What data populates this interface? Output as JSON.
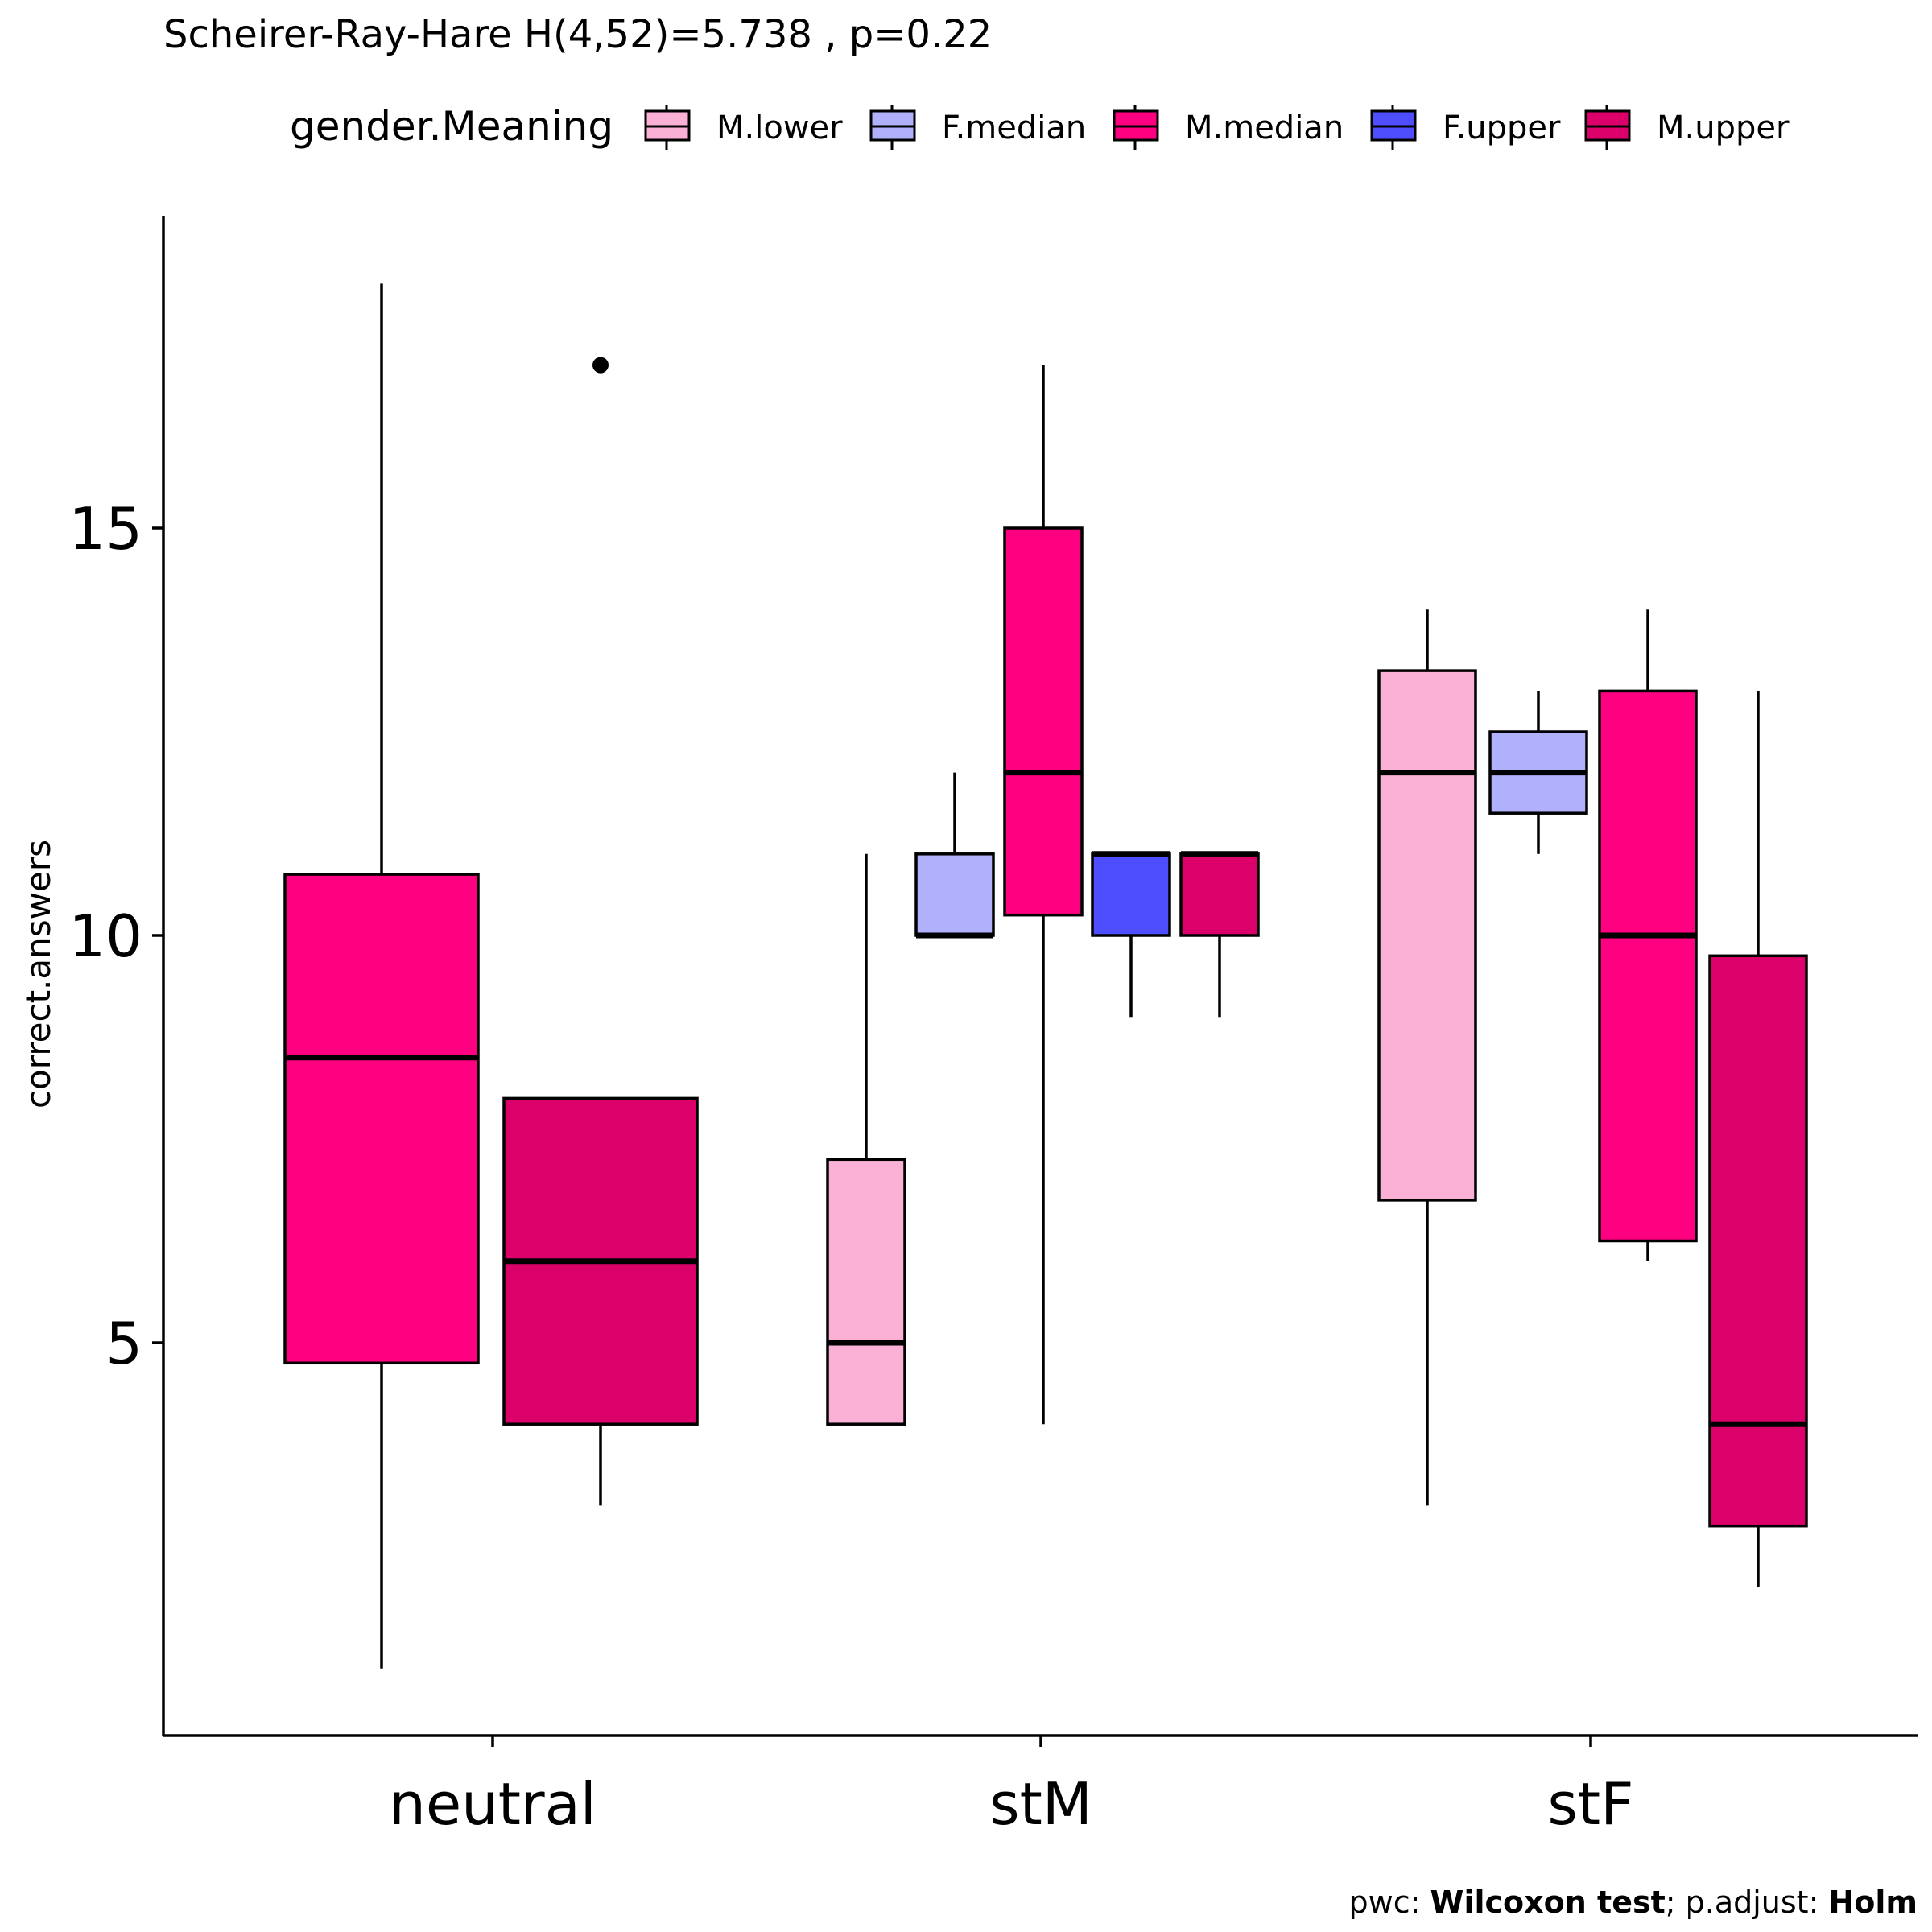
{
  "chart_data": {
    "type": "box",
    "title": "Scheirer-Ray-Hare H(4,52)=5.738 , p=0.22",
    "ylabel": "correct.answers",
    "xlabel": "",
    "ylim": [
      0.5,
      19.2
    ],
    "yticks": [
      5,
      10,
      15
    ],
    "categories": [
      "neutral",
      "stM",
      "stF"
    ],
    "legend": {
      "title": "gender.Meaning",
      "position": "top",
      "entries": [
        {
          "name": "M.lower",
          "color": "#FBB1D6"
        },
        {
          "name": "F.median",
          "color": "#B1B1FB"
        },
        {
          "name": "M.median",
          "color": "#FF0080"
        },
        {
          "name": "F.upper",
          "color": "#4E4EFF"
        },
        {
          "name": "M.upper",
          "color": "#DC006A"
        }
      ]
    },
    "series": [
      {
        "name": "M.lower",
        "category": "stM",
        "min": 4,
        "q1": 4,
        "median": 5,
        "q3": 7.25,
        "max": 11,
        "outliers": []
      },
      {
        "name": "F.median",
        "category": "stM",
        "min": 10,
        "q1": 10,
        "median": 10,
        "q3": 11,
        "max": 12,
        "outliers": []
      },
      {
        "name": "M.median",
        "category": "stM",
        "min": 4,
        "q1": 10.25,
        "median": 12,
        "q3": 15,
        "max": 17,
        "outliers": []
      },
      {
        "name": "F.upper",
        "category": "stM",
        "min": 9,
        "q1": 10,
        "median": 11,
        "q3": 11,
        "max": 11,
        "outliers": []
      },
      {
        "name": "M.upper",
        "category": "stM",
        "min": 9,
        "q1": 10,
        "median": 11,
        "q3": 11,
        "max": 11,
        "outliers": []
      },
      {
        "name": "M.median",
        "category": "neutral",
        "min": 1,
        "q1": 4.75,
        "median": 8.5,
        "q3": 10.75,
        "max": 18,
        "outliers": []
      },
      {
        "name": "M.upper",
        "category": "neutral",
        "min": 3,
        "q1": 4,
        "median": 6,
        "q3": 8,
        "max": 8,
        "outliers": [
          17
        ]
      },
      {
        "name": "M.lower",
        "category": "stF",
        "min": 3,
        "q1": 6.75,
        "median": 12,
        "q3": 13.25,
        "max": 14,
        "outliers": []
      },
      {
        "name": "F.median",
        "category": "stF",
        "min": 11,
        "q1": 11.5,
        "median": 12,
        "q3": 12.5,
        "max": 13,
        "outliers": []
      },
      {
        "name": "M.median",
        "category": "stF",
        "min": 6,
        "q1": 6.25,
        "median": 10,
        "q3": 13,
        "max": 14,
        "outliers": []
      },
      {
        "name": "M.upper",
        "category": "stF",
        "min": 2,
        "q1": 2.75,
        "median": 4,
        "q3": 9.75,
        "max": 13,
        "outliers": []
      }
    ],
    "caption": {
      "part1": "pwc: ",
      "part2": "Wilcoxon test",
      "part3": "; p.adjust: ",
      "part4": "Holm"
    }
  }
}
